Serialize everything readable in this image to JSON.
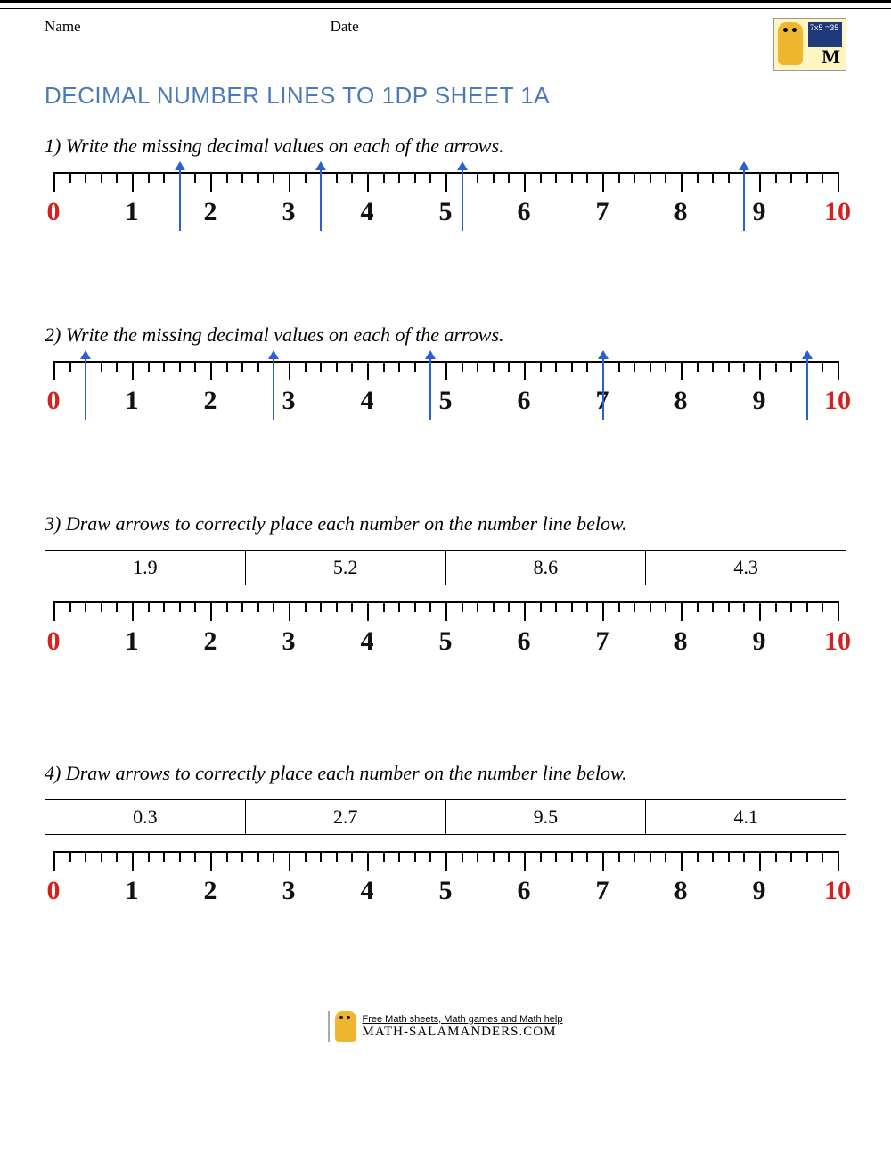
{
  "header": {
    "name_label": "Name",
    "date_label": "Date",
    "logo_board_text": "7x5\n=35"
  },
  "title": "DECIMAL NUMBER LINES TO 1DP SHEET 1A",
  "colors": {
    "title": "#4a7ab8",
    "arrow": "#2a5fd6",
    "endcap": "#d62020",
    "text": "#111111",
    "background": "#ffffff",
    "border": "#000000"
  },
  "numberline": {
    "min": 0,
    "max": 10,
    "majors": [
      0,
      1,
      2,
      3,
      4,
      5,
      6,
      7,
      8,
      9,
      10
    ],
    "label_fontsize": 30,
    "label_fontfamily": "Comic Sans MS",
    "major_tick_height": 22,
    "minor_tick_height": 12,
    "minors_per_major": 5
  },
  "questions": [
    {
      "num": "1)",
      "prompt": "Write the missing decimal values on each of the arrows.",
      "type": "arrows",
      "arrows": [
        1.6,
        3.4,
        5.2,
        8.8
      ]
    },
    {
      "num": "2)",
      "prompt": "Write the missing decimal values on each of the arrows.",
      "type": "arrows",
      "arrows": [
        0.4,
        2.8,
        4.8,
        7.0,
        9.6
      ]
    },
    {
      "num": "3)",
      "prompt": "Draw arrows to correctly place each number on the number line below.",
      "type": "place",
      "values": [
        "1.9",
        "5.2",
        "8.6",
        "4.3"
      ]
    },
    {
      "num": "4)",
      "prompt": "Draw arrows to correctly place each number on the number line below.",
      "type": "place",
      "values": [
        "0.3",
        "2.7",
        "9.5",
        "4.1"
      ]
    }
  ],
  "footer": {
    "tagline": "Free Math sheets, Math games and Math help",
    "url": "MATH-SALAMANDERS.COM"
  }
}
